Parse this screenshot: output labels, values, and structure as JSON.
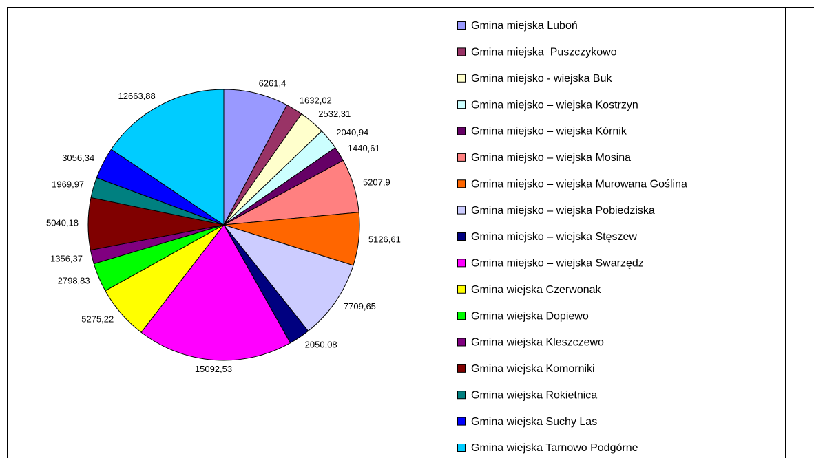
{
  "chart_data": {
    "type": "pie",
    "categories": [
      "Gmina miejska Luboń",
      "Gmina miejska  Puszczykowo",
      "Gmina miejsko - wiejska Buk",
      "Gmina miejsko – wiejska Kostrzyn",
      "Gmina miejsko – wiejska Kórnik",
      "Gmina miejsko – wiejska Mosina",
      "Gmina miejsko – wiejska Murowana Goślina",
      "Gmina miejsko – wiejska Pobiedziska",
      "Gmina miejsko – wiejska Stęszew",
      "Gmina miejsko – wiejska Swarzędz",
      "Gmina wiejska Czerwonak",
      "Gmina wiejska Dopiewo",
      "Gmina wiejska Kleszczewo",
      "Gmina wiejska Komorniki",
      "Gmina wiejska Rokietnica",
      "Gmina wiejska Suchy Las",
      "Gmina wiejska Tarnowo Podgórne"
    ],
    "values": [
      6261.4,
      1632.02,
      2532.31,
      2040.94,
      1440.61,
      5207.9,
      5126.61,
      7709.65,
      2050.08,
      15092.53,
      5275.22,
      2798.83,
      1356.37,
      5040.18,
      1969.97,
      3056.34,
      12663.88
    ],
    "value_labels": [
      "6261,4",
      "1632,02",
      "2532,31",
      "2040,94",
      "1440,61",
      "5207,9",
      "5126,61",
      "7709,65",
      "2050,08",
      "15092,53",
      "5275,22",
      "2798,83",
      "1356,37",
      "5040,18",
      "1969,97",
      "3056,34",
      "12663,88"
    ],
    "colors": [
      "#9999ff",
      "#993366",
      "#ffffcc",
      "#ccffff",
      "#660066",
      "#ff8080",
      "#ff6600",
      "#ccccff",
      "#000080",
      "#ff00ff",
      "#ffff00",
      "#00ff00",
      "#800080",
      "#800000",
      "#008080",
      "#0000ff",
      "#00ccff"
    ],
    "legend": "right"
  }
}
